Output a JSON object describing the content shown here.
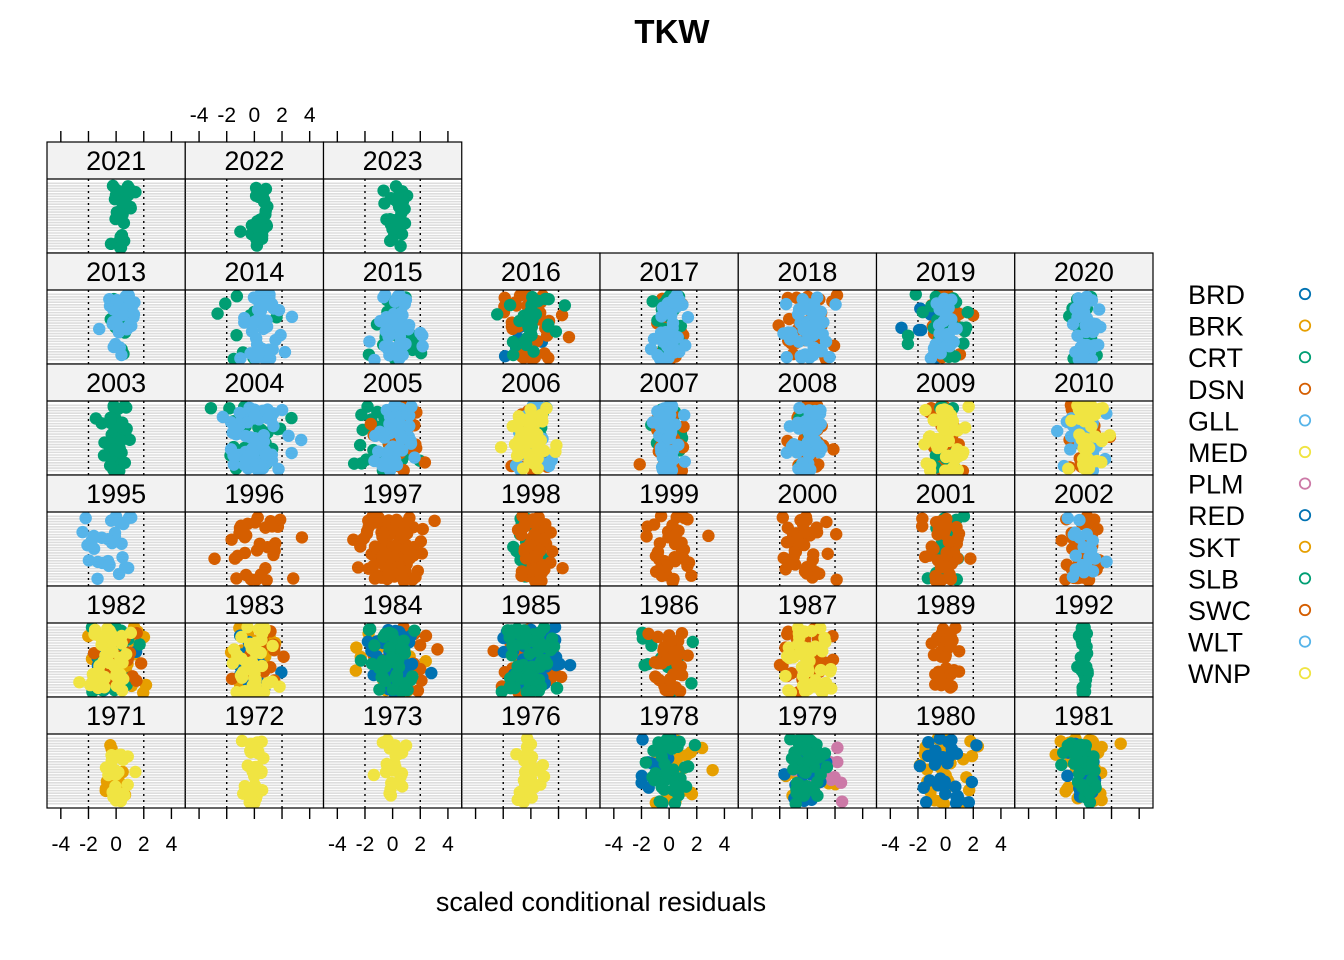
{
  "chart_data": {
    "type": "scatter",
    "title": "TKW",
    "xlabel": "scaled conditional residuals",
    "ylabel": "",
    "xlim": [
      -5,
      5
    ],
    "xticks": [
      -4,
      -2,
      0,
      2,
      4
    ],
    "xtick_labels": [
      "-4",
      "-2",
      "0",
      "2",
      "4"
    ],
    "reference_lines_x": [
      -2,
      2
    ],
    "grid": true,
    "legend": "right",
    "series": [
      {
        "name": "BRD",
        "color": "#0072B2"
      },
      {
        "name": "BRK",
        "color": "#E69F00"
      },
      {
        "name": "CRT",
        "color": "#009E73"
      },
      {
        "name": "DSN",
        "color": "#D55E00"
      },
      {
        "name": "GLL",
        "color": "#56B4E9"
      },
      {
        "name": "MED",
        "color": "#F0E442"
      },
      {
        "name": "PLM",
        "color": "#CC79A7"
      },
      {
        "name": "RED",
        "color": "#0072B2"
      },
      {
        "name": "SKT",
        "color": "#E69F00"
      },
      {
        "name": "SLB",
        "color": "#009E73"
      },
      {
        "name": "SWC",
        "color": "#D55E00"
      },
      {
        "name": "WLT",
        "color": "#56B4E9"
      },
      {
        "name": "WNP",
        "color": "#F0E442"
      }
    ],
    "panels": [
      {
        "year": "2021",
        "groups": [
          {
            "series": "CRT",
            "center": 0.3,
            "spread": 1.0,
            "n": 30
          }
        ]
      },
      {
        "year": "2022",
        "groups": [
          {
            "series": "CRT",
            "center": 0.3,
            "spread": 1.0,
            "n": 30
          }
        ]
      },
      {
        "year": "2023",
        "groups": [
          {
            "series": "CRT",
            "center": 0.3,
            "spread": 1.0,
            "n": 30
          }
        ]
      },
      {
        "year": "2013",
        "groups": [
          {
            "series": "CRT",
            "center": 0.2,
            "spread": 1.0,
            "n": 12
          },
          {
            "series": "GLL",
            "center": 0.3,
            "spread": 1.3,
            "n": 35
          }
        ]
      },
      {
        "year": "2014",
        "groups": [
          {
            "series": "CRT",
            "center": -0.5,
            "spread": 1.8,
            "n": 10
          },
          {
            "series": "GLL",
            "center": 0.6,
            "spread": 1.6,
            "n": 45
          }
        ]
      },
      {
        "year": "2015",
        "groups": [
          {
            "series": "CRT",
            "center": 0.2,
            "spread": 2.0,
            "n": 25
          },
          {
            "series": "GLL",
            "center": 0.3,
            "spread": 1.6,
            "n": 45
          }
        ]
      },
      {
        "year": "2016",
        "groups": [
          {
            "series": "BRD",
            "center": -1.0,
            "spread": 1.6,
            "n": 15
          },
          {
            "series": "DSN",
            "center": 0.0,
            "spread": 2.4,
            "n": 40
          },
          {
            "series": "CRT",
            "center": 0.2,
            "spread": 2.0,
            "n": 30
          }
        ]
      },
      {
        "year": "2017",
        "groups": [
          {
            "series": "DSN",
            "center": 0.0,
            "spread": 1.2,
            "n": 25
          },
          {
            "series": "CRT",
            "center": 0.0,
            "spread": 1.2,
            "n": 20
          },
          {
            "series": "GLL",
            "center": 0.0,
            "spread": 1.1,
            "n": 40
          }
        ]
      },
      {
        "year": "2018",
        "groups": [
          {
            "series": "DSN",
            "center": 0.0,
            "spread": 2.2,
            "n": 30
          },
          {
            "series": "GLL",
            "center": 0.0,
            "spread": 1.8,
            "n": 50
          }
        ]
      },
      {
        "year": "2019",
        "groups": [
          {
            "series": "BRD",
            "center": -1.5,
            "spread": 2.5,
            "n": 8
          },
          {
            "series": "DSN",
            "center": 0.0,
            "spread": 1.6,
            "n": 30
          },
          {
            "series": "CRT",
            "center": -0.5,
            "spread": 2.3,
            "n": 30
          },
          {
            "series": "GLL",
            "center": 0.0,
            "spread": 1.0,
            "n": 25
          }
        ]
      },
      {
        "year": "2020",
        "groups": [
          {
            "series": "CRT",
            "center": 0.0,
            "spread": 1.3,
            "n": 20
          },
          {
            "series": "GLL",
            "center": 0.0,
            "spread": 1.1,
            "n": 35
          }
        ]
      },
      {
        "year": "2003",
        "groups": [
          {
            "series": "CRT",
            "center": 0.0,
            "spread": 1.2,
            "n": 40
          }
        ]
      },
      {
        "year": "2004",
        "groups": [
          {
            "series": "CRT",
            "center": -0.5,
            "spread": 2.6,
            "n": 40
          },
          {
            "series": "GLL",
            "center": 0.0,
            "spread": 2.6,
            "n": 60
          }
        ]
      },
      {
        "year": "2005",
        "groups": [
          {
            "series": "CRT",
            "center": -0.6,
            "spread": 2.3,
            "n": 35
          },
          {
            "series": "DSN",
            "center": 0.7,
            "spread": 2.2,
            "n": 25
          },
          {
            "series": "GLL",
            "center": 0.2,
            "spread": 1.9,
            "n": 45
          }
        ]
      },
      {
        "year": "2006",
        "groups": [
          {
            "series": "CRT",
            "center": 0.0,
            "spread": 1.4,
            "n": 20
          },
          {
            "series": "DSN",
            "center": 0.0,
            "spread": 1.5,
            "n": 25
          },
          {
            "series": "GLL",
            "center": 0.0,
            "spread": 1.5,
            "n": 30
          },
          {
            "series": "MED",
            "center": 0.0,
            "spread": 1.6,
            "n": 45
          }
        ]
      },
      {
        "year": "2007",
        "groups": [
          {
            "series": "CRT",
            "center": 0.0,
            "spread": 1.3,
            "n": 20
          },
          {
            "series": "DSN",
            "center": 0.0,
            "spread": 1.3,
            "n": 30
          },
          {
            "series": "GLL",
            "center": 0.0,
            "spread": 1.2,
            "n": 50
          }
        ]
      },
      {
        "year": "2008",
        "groups": [
          {
            "series": "DSN",
            "center": 0.0,
            "spread": 1.4,
            "n": 35
          },
          {
            "series": "CRT",
            "center": 0.0,
            "spread": 1.2,
            "n": 10
          },
          {
            "series": "GLL",
            "center": 0.0,
            "spread": 1.3,
            "n": 45
          }
        ]
      },
      {
        "year": "2009",
        "groups": [
          {
            "series": "DSN",
            "center": 0.0,
            "spread": 1.4,
            "n": 35
          },
          {
            "series": "CRT",
            "center": 0.0,
            "spread": 1.2,
            "n": 15
          },
          {
            "series": "MED",
            "center": 0.0,
            "spread": 1.6,
            "n": 45
          }
        ]
      },
      {
        "year": "2010",
        "groups": [
          {
            "series": "DSN",
            "center": 0.0,
            "spread": 1.8,
            "n": 25
          },
          {
            "series": "GLL",
            "center": 0.0,
            "spread": 2.0,
            "n": 30
          },
          {
            "series": "MED",
            "center": 0.0,
            "spread": 1.6,
            "n": 40
          }
        ]
      },
      {
        "year": "1995",
        "groups": [
          {
            "series": "GLL",
            "center": -0.5,
            "spread": 2.2,
            "n": 30
          }
        ]
      },
      {
        "year": "1996",
        "groups": [
          {
            "series": "DSN",
            "center": 0.0,
            "spread": 2.4,
            "n": 35
          }
        ]
      },
      {
        "year": "1997",
        "groups": [
          {
            "series": "DSN",
            "center": 0.0,
            "spread": 2.5,
            "n": 100
          }
        ]
      },
      {
        "year": "1998",
        "groups": [
          {
            "series": "CRT",
            "center": 0.0,
            "spread": 1.4,
            "n": 35
          },
          {
            "series": "DSN",
            "center": 0.2,
            "spread": 1.6,
            "n": 50
          }
        ]
      },
      {
        "year": "1999",
        "groups": [
          {
            "series": "DSN",
            "center": 0.0,
            "spread": 2.4,
            "n": 40
          }
        ]
      },
      {
        "year": "2000",
        "groups": [
          {
            "series": "DSN",
            "center": -0.2,
            "spread": 1.7,
            "n": 40
          }
        ]
      },
      {
        "year": "2001",
        "groups": [
          {
            "series": "CRT",
            "center": 0.0,
            "spread": 1.5,
            "n": 30
          },
          {
            "series": "DSN",
            "center": 0.0,
            "spread": 1.7,
            "n": 40
          }
        ]
      },
      {
        "year": "2002",
        "groups": [
          {
            "series": "DSN",
            "center": 0.0,
            "spread": 1.6,
            "n": 45
          },
          {
            "series": "GLL",
            "center": 0.0,
            "spread": 1.5,
            "n": 20
          }
        ]
      },
      {
        "year": "1982",
        "groups": [
          {
            "series": "BRK",
            "center": 0.0,
            "spread": 2.2,
            "n": 30
          },
          {
            "series": "RED",
            "center": 0.0,
            "spread": 1.8,
            "n": 20
          },
          {
            "series": "SLB",
            "center": 0.0,
            "spread": 2.0,
            "n": 30
          },
          {
            "series": "DSN",
            "center": 0.5,
            "spread": 2.3,
            "n": 15
          },
          {
            "series": "MED",
            "center": -0.5,
            "spread": 1.8,
            "n": 45
          }
        ]
      },
      {
        "year": "1983",
        "groups": [
          {
            "series": "BRK",
            "center": 0.0,
            "spread": 2.4,
            "n": 25
          },
          {
            "series": "RED",
            "center": 0.0,
            "spread": 1.6,
            "n": 20
          },
          {
            "series": "SWC",
            "center": 0.5,
            "spread": 2.2,
            "n": 15
          },
          {
            "series": "MED",
            "center": 0.0,
            "spread": 1.6,
            "n": 45
          }
        ]
      },
      {
        "year": "1984",
        "groups": [
          {
            "series": "BRK",
            "center": 0.0,
            "spread": 2.6,
            "n": 30
          },
          {
            "series": "SWC",
            "center": 0.5,
            "spread": 2.5,
            "n": 25
          },
          {
            "series": "RED",
            "center": 0.0,
            "spread": 2.0,
            "n": 40
          },
          {
            "series": "SLB",
            "center": 0.0,
            "spread": 2.0,
            "n": 45
          }
        ]
      },
      {
        "year": "1985",
        "groups": [
          {
            "series": "SWC",
            "center": 0.0,
            "spread": 2.5,
            "n": 25
          },
          {
            "series": "RED",
            "center": 0.0,
            "spread": 2.3,
            "n": 50
          },
          {
            "series": "SLB",
            "center": 0.0,
            "spread": 2.5,
            "n": 60
          }
        ]
      },
      {
        "year": "1986",
        "groups": [
          {
            "series": "SLB",
            "center": -0.5,
            "spread": 2.3,
            "n": 20
          },
          {
            "series": "SWC",
            "center": 0.0,
            "spread": 1.6,
            "n": 40
          }
        ]
      },
      {
        "year": "1987",
        "groups": [
          {
            "series": "SWC",
            "center": 0.0,
            "spread": 2.0,
            "n": 35
          },
          {
            "series": "MED",
            "center": 0.0,
            "spread": 1.8,
            "n": 45
          }
        ]
      },
      {
        "year": "1989",
        "groups": [
          {
            "series": "SWC",
            "center": 0.0,
            "spread": 0.9,
            "n": 40
          }
        ]
      },
      {
        "year": "1992",
        "groups": [
          {
            "series": "SLB",
            "center": 0.0,
            "spread": 0.4,
            "n": 35
          }
        ]
      },
      {
        "year": "1971",
        "groups": [
          {
            "series": "SKT",
            "center": 0.0,
            "spread": 1.4,
            "n": 15
          },
          {
            "series": "WNP",
            "center": 0.0,
            "spread": 1.0,
            "n": 25
          }
        ]
      },
      {
        "year": "1972",
        "groups": [
          {
            "series": "WNP",
            "center": 0.0,
            "spread": 0.9,
            "n": 30
          }
        ]
      },
      {
        "year": "1973",
        "groups": [
          {
            "series": "WNP",
            "center": 0.0,
            "spread": 1.0,
            "n": 25
          }
        ]
      },
      {
        "year": "1976",
        "groups": [
          {
            "series": "WNP",
            "center": 0.0,
            "spread": 1.4,
            "n": 30
          }
        ]
      },
      {
        "year": "1978",
        "groups": [
          {
            "series": "SKT",
            "center": 0.0,
            "spread": 2.6,
            "n": 20
          },
          {
            "series": "RED",
            "center": -1.0,
            "spread": 1.8,
            "n": 15
          },
          {
            "series": "SLB",
            "center": 0.0,
            "spread": 2.0,
            "n": 40
          }
        ]
      },
      {
        "year": "1979",
        "groups": [
          {
            "series": "SKT",
            "center": 0.0,
            "spread": 2.0,
            "n": 20
          },
          {
            "series": "PLM",
            "center": 0.5,
            "spread": 2.4,
            "n": 15
          },
          {
            "series": "RED",
            "center": 0.0,
            "spread": 1.8,
            "n": 20
          },
          {
            "series": "SLB",
            "center": 0.0,
            "spread": 1.8,
            "n": 45
          }
        ]
      },
      {
        "year": "1980",
        "groups": [
          {
            "series": "SKT",
            "center": 0.0,
            "spread": 2.5,
            "n": 35
          },
          {
            "series": "RED",
            "center": 0.0,
            "spread": 1.5,
            "n": 35
          }
        ]
      },
      {
        "year": "1981",
        "groups": [
          {
            "series": "SKT",
            "center": 0.0,
            "spread": 2.6,
            "n": 35
          },
          {
            "series": "RED",
            "center": 0.0,
            "spread": 1.5,
            "n": 20
          },
          {
            "series": "SLB",
            "center": 0.0,
            "spread": 1.5,
            "n": 35
          }
        ]
      }
    ]
  }
}
